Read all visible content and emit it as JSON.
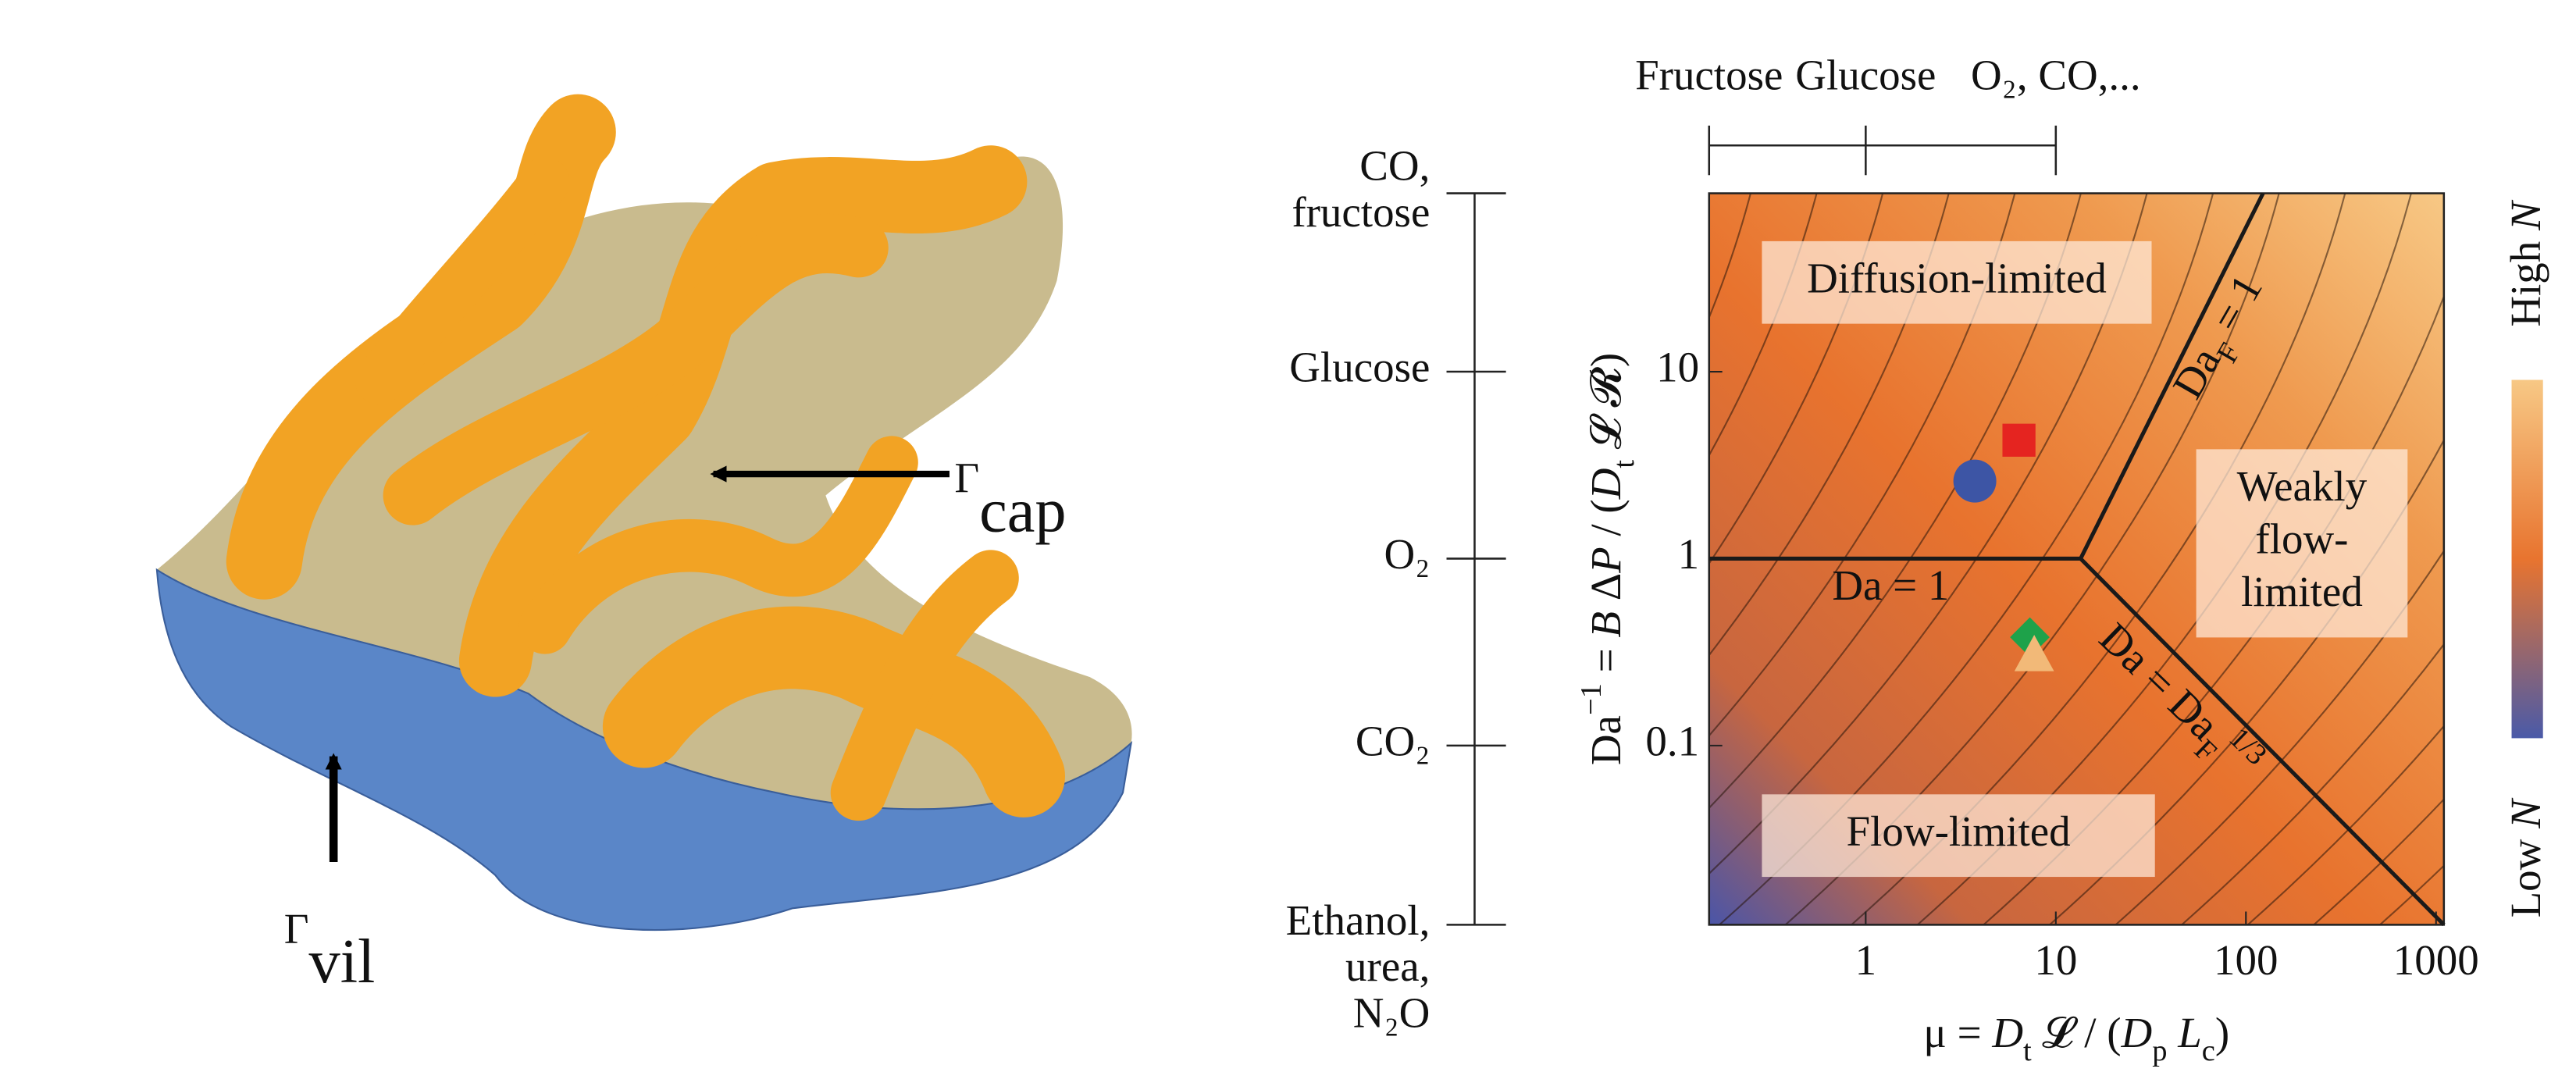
{
  "image_labels": {
    "cap": [
      {
        "t": "Γ"
      },
      {
        "t": "cap",
        "sub": true
      }
    ],
    "vil": [
      {
        "t": "Γ"
      },
      {
        "t": "vil",
        "sub": true
      }
    ]
  },
  "chart_data": {
    "type": "phase-diagram",
    "xlabel": [
      {
        "t": "μ = "
      },
      {
        "t": "D",
        "italic": true
      },
      {
        "t": "t",
        "sub": true
      },
      {
        "t": " 𝓛 / ("
      },
      {
        "t": "D",
        "italic": true
      },
      {
        "t": "p",
        "sub": true
      },
      {
        "t": " "
      },
      {
        "t": "L",
        "italic": true
      },
      {
        "t": "c",
        "sub": true
      },
      {
        "t": ")"
      }
    ],
    "ylabel": [
      {
        "t": "Da"
      },
      {
        "t": "−1",
        "sup": true
      },
      {
        "t": " = "
      },
      {
        "t": "B",
        "italic": true
      },
      {
        "t": " Δ"
      },
      {
        "t": "P",
        "italic": true
      },
      {
        "t": " / ("
      },
      {
        "t": "D",
        "italic": true
      },
      {
        "t": "t",
        "sub": true
      },
      {
        "t": " 𝓛 𝓡)"
      }
    ],
    "log_x": true,
    "log_y": true,
    "xlim": [
      0.15,
      1100
    ],
    "ylim": [
      0.011,
      90
    ],
    "xticks": [
      1,
      10,
      100,
      1000
    ],
    "yticks": [
      0.1,
      1,
      10
    ],
    "top_ticks": [
      {
        "value": 0.15,
        "label": "Fructose"
      },
      {
        "value": 1,
        "label": "Glucose"
      },
      {
        "value": 10,
        "label": "O₂, CO,..."
      }
    ],
    "left_ticks": [
      {
        "value": 90,
        "label": [
          "CO,",
          "fructose"
        ]
      },
      {
        "value": 10,
        "label": [
          "Glucose"
        ]
      },
      {
        "value": 1,
        "label": [
          "O₂"
        ]
      },
      {
        "value": 0.1,
        "label": [
          "CO₂"
        ]
      },
      {
        "value": 0.011,
        "label": [
          "Ethanol,",
          "urea,",
          "N₂O"
        ]
      }
    ],
    "boundaries": [
      {
        "label": [
          {
            "t": "Da = 1"
          }
        ],
        "x": [
          0.15,
          13.5
        ],
        "y": [
          1,
          1
        ]
      },
      {
        "label": [
          {
            "t": "Da"
          },
          {
            "t": "F",
            "sub": true
          },
          {
            "t": " = 1"
          }
        ],
        "x": [
          13.5,
          123
        ],
        "y": [
          1,
          90
        ]
      },
      {
        "label": [
          {
            "t": "Da = Da"
          },
          {
            "t": "F",
            "sub": true
          },
          {
            "t": "1/3",
            "sup": true
          }
        ],
        "x": [
          13.5,
          1100
        ],
        "y": [
          1,
          0.011
        ]
      }
    ],
    "boundary_color": "#1a1a1a",
    "regions": [
      {
        "label": [
          "Diffusion-limited"
        ]
      },
      {
        "label": [
          "Weakly",
          "flow-",
          "limited"
        ]
      },
      {
        "label": [
          "Flow-limited"
        ]
      }
    ],
    "points": [
      {
        "x": 3.75,
        "y": 2.6,
        "shape": "circle",
        "color": "#3d55a5"
      },
      {
        "x": 6.4,
        "y": 4.3,
        "shape": "square",
        "color": "#e52420"
      },
      {
        "x": 7.3,
        "y": 0.38,
        "shape": "diamond",
        "color": "#1ea24a"
      },
      {
        "x": 7.7,
        "y": 0.3,
        "shape": "triangle",
        "color": "#f2b978"
      }
    ],
    "colorbar": {
      "high": [
        {
          "t": "High "
        },
        {
          "t": "N",
          "italic": true
        }
      ],
      "low": [
        {
          "t": "Low "
        },
        {
          "t": "N",
          "italic": true
        }
      ],
      "colors": [
        "#4a5aa8",
        "#e8742f",
        "#f7c885"
      ]
    }
  }
}
